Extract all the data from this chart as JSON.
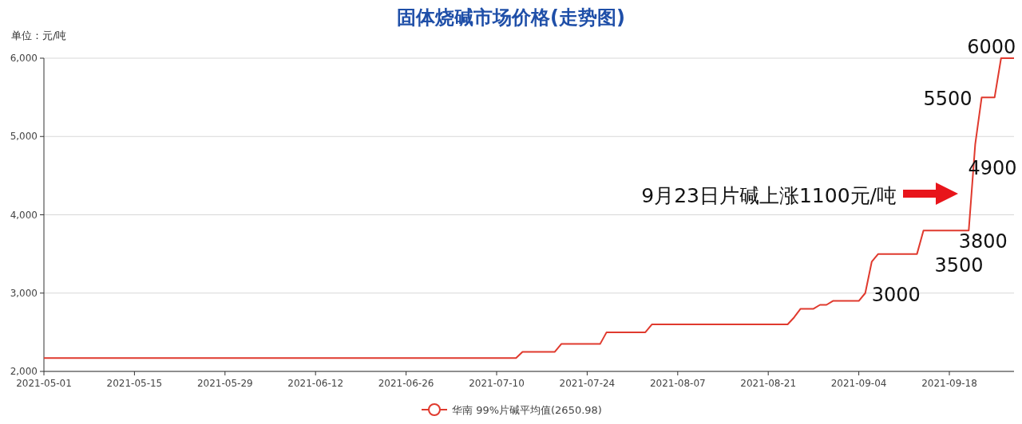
{
  "chart_data": {
    "type": "line",
    "title": "固体烧碱市场价格(走势图)",
    "ylabel": "单位：元/吨",
    "xlim": [
      "2021-05-01",
      "2021-09-28"
    ],
    "ylim": [
      2000,
      6000
    ],
    "xticks": [
      "2021-05-01",
      "2021-05-15",
      "2021-05-29",
      "2021-06-12",
      "2021-06-26",
      "2021-07-10",
      "2021-07-24",
      "2021-08-07",
      "2021-08-21",
      "2021-09-04",
      "2021-09-18"
    ],
    "yticks": [
      {
        "value": 2000,
        "label": "2,000"
      },
      {
        "value": 3000,
        "label": "3,000"
      },
      {
        "value": 4000,
        "label": "4,000"
      },
      {
        "value": 5000,
        "label": "5,000"
      },
      {
        "value": 6000,
        "label": "6,000"
      }
    ],
    "grid": "y",
    "legend": "bottom",
    "series": [
      {
        "name": "华南 99%片碱平均值(2650.98)",
        "color": "#e03a2e",
        "x": [
          "2021-05-01",
          "2021-07-13",
          "2021-07-14",
          "2021-07-19",
          "2021-07-20",
          "2021-07-26",
          "2021-07-27",
          "2021-08-02",
          "2021-08-03",
          "2021-08-24",
          "2021-08-25",
          "2021-08-26",
          "2021-08-28",
          "2021-08-29",
          "2021-08-30",
          "2021-08-31",
          "2021-09-04",
          "2021-09-05",
          "2021-09-06",
          "2021-09-07",
          "2021-09-13",
          "2021-09-14",
          "2021-09-21",
          "2021-09-22",
          "2021-09-23",
          "2021-09-25",
          "2021-09-26",
          "2021-09-28"
        ],
        "values": [
          2170,
          2170,
          2250,
          2250,
          2350,
          2350,
          2500,
          2500,
          2600,
          2600,
          2690,
          2800,
          2800,
          2850,
          2850,
          2900,
          2900,
          3000,
          3400,
          3500,
          3500,
          3800,
          3800,
          4900,
          5500,
          5500,
          6000,
          6000
        ]
      }
    ],
    "annotations": [
      {
        "text": "3000",
        "x": "2021-09-05",
        "y": 3000
      },
      {
        "text": "3500",
        "x": "2021-09-13",
        "y": 3500
      },
      {
        "text": "3800",
        "x": "2021-09-21",
        "y": 3800
      },
      {
        "text": "4900",
        "x": "2021-09-22",
        "y": 4900
      },
      {
        "text": "5500",
        "x": "2021-09-23",
        "y": 5500
      },
      {
        "text": "6000",
        "x": "2021-09-26",
        "y": 6000
      },
      "9月23日片碱上涨1100元/吨"
    ]
  }
}
